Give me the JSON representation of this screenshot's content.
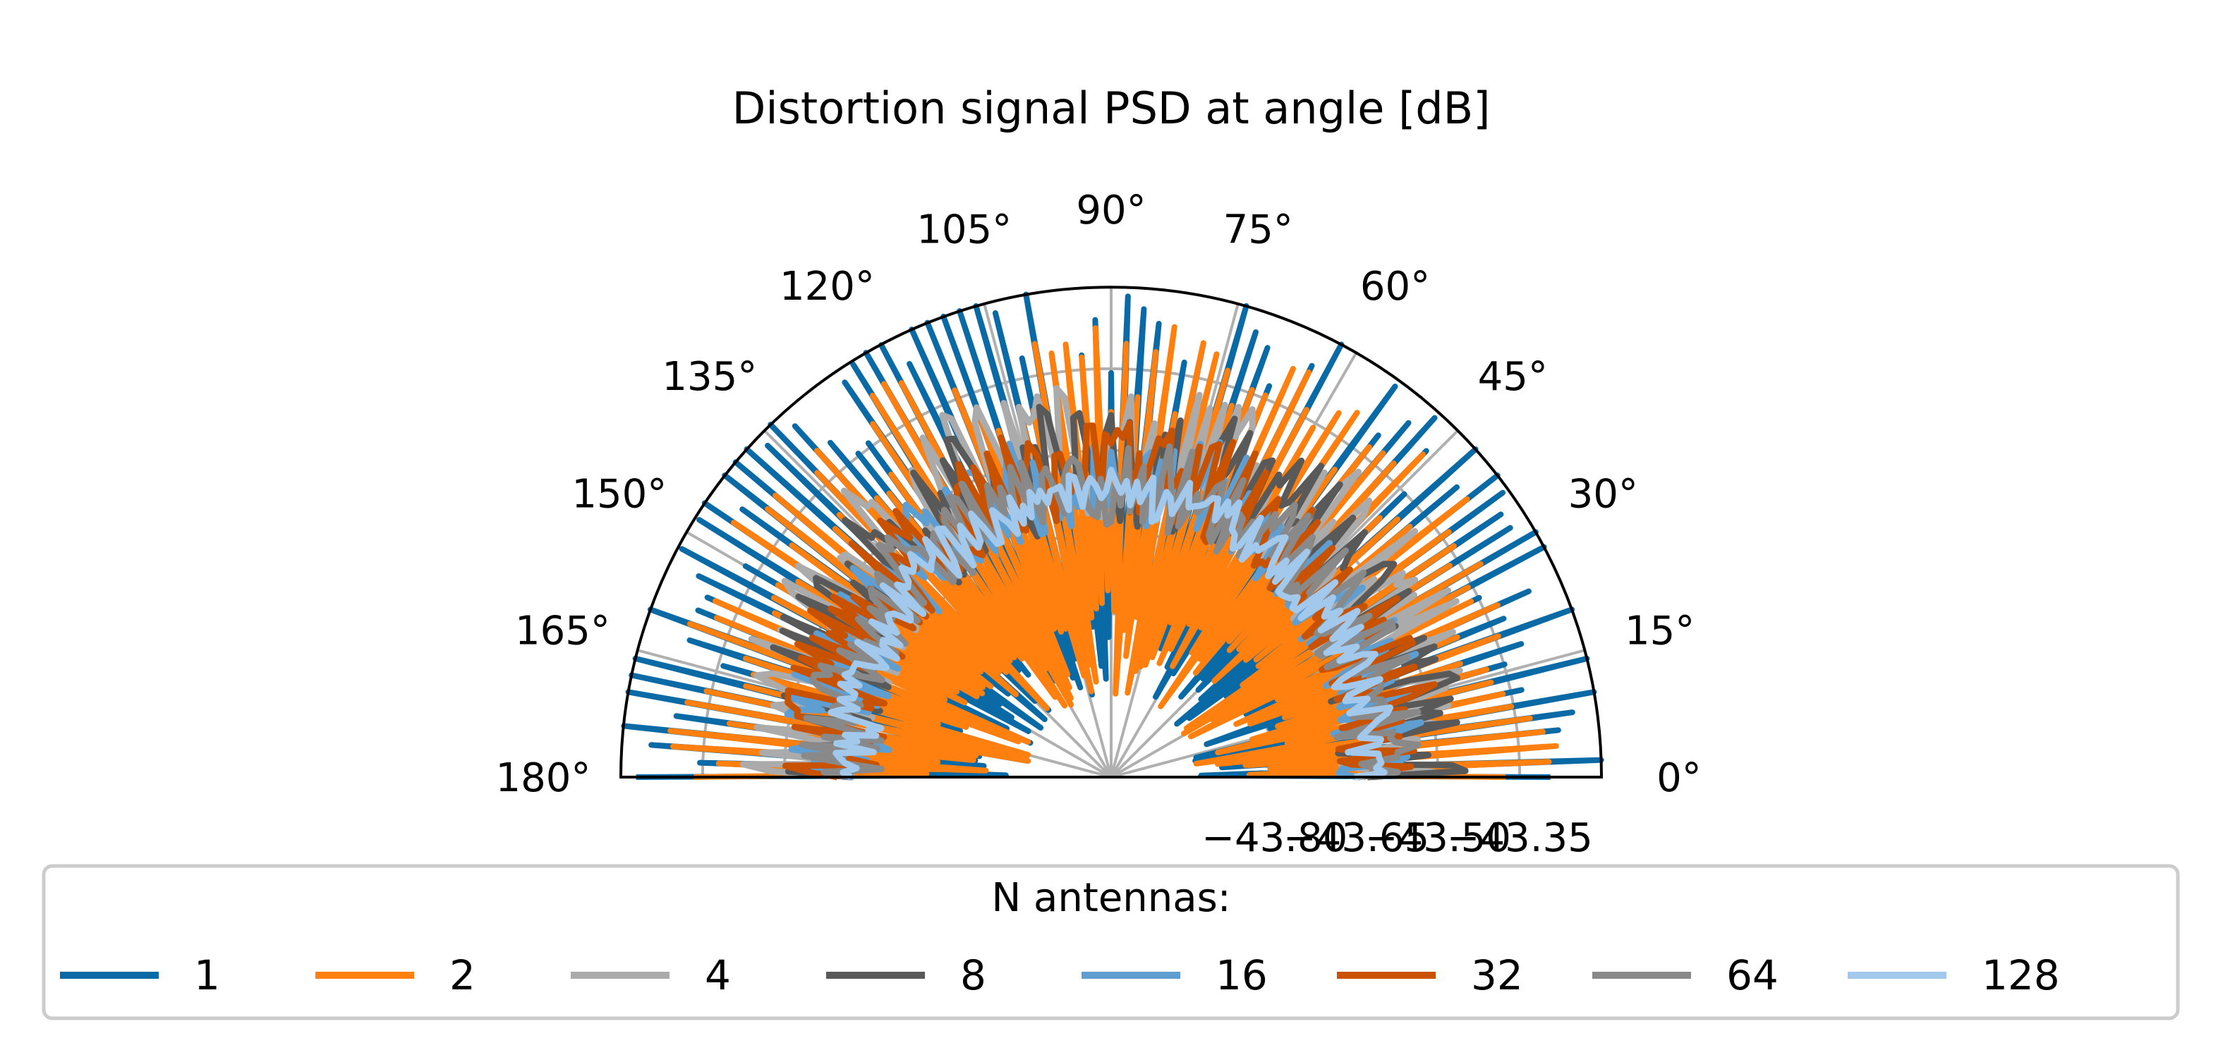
{
  "chart_data": {
    "type": "line",
    "subtype": "polar-half",
    "title": "Distortion signal PSD at angle [dB]",
    "theta_range_deg": [
      0,
      180
    ],
    "theta_ticks": [
      "0°",
      "15°",
      "30°",
      "45°",
      "60°",
      "75°",
      "90°",
      "105°",
      "120°",
      "135°",
      "150°",
      "165°",
      "180°"
    ],
    "r_range": [
      -44.1,
      -43.2
    ],
    "r_ticks": [
      -43.8,
      -43.65,
      -43.5,
      -43.35
    ],
    "r_tick_labels": [
      "−43.80",
      "−43.65",
      "−43.50",
      "−43.35"
    ],
    "grid": true,
    "legend": {
      "title": "N antennas:",
      "placement": "bottom",
      "entries": [
        "1",
        "2",
        "4",
        "8",
        "16",
        "32",
        "64",
        "128"
      ]
    },
    "series": [
      {
        "name": "1",
        "color": "#0a6aa6",
        "base": -43.36,
        "amp": 0.3,
        "seed": 11,
        "spiky": true
      },
      {
        "name": "2",
        "color": "#ff800e",
        "base": -43.44,
        "amp": 0.22,
        "seed": 23,
        "spiky": true
      },
      {
        "name": "4",
        "color": "#ababab",
        "base": -43.5,
        "amp": 0.14,
        "seed": 37,
        "spiky": false
      },
      {
        "name": "8",
        "color": "#595959",
        "base": -43.52,
        "amp": 0.12,
        "seed": 41,
        "spiky": false
      },
      {
        "name": "16",
        "color": "#5f9ed1",
        "base": -43.55,
        "amp": 0.1,
        "seed": 53,
        "spiky": false
      },
      {
        "name": "32",
        "color": "#c85200",
        "base": -43.54,
        "amp": 0.1,
        "seed": 67,
        "spiky": false
      },
      {
        "name": "64",
        "color": "#898989",
        "base": -43.56,
        "amp": 0.08,
        "seed": 71,
        "spiky": false
      },
      {
        "name": "128",
        "color": "#a2c8ec",
        "base": -43.58,
        "amp": 0.05,
        "seed": 83,
        "spiky": false
      }
    ]
  }
}
